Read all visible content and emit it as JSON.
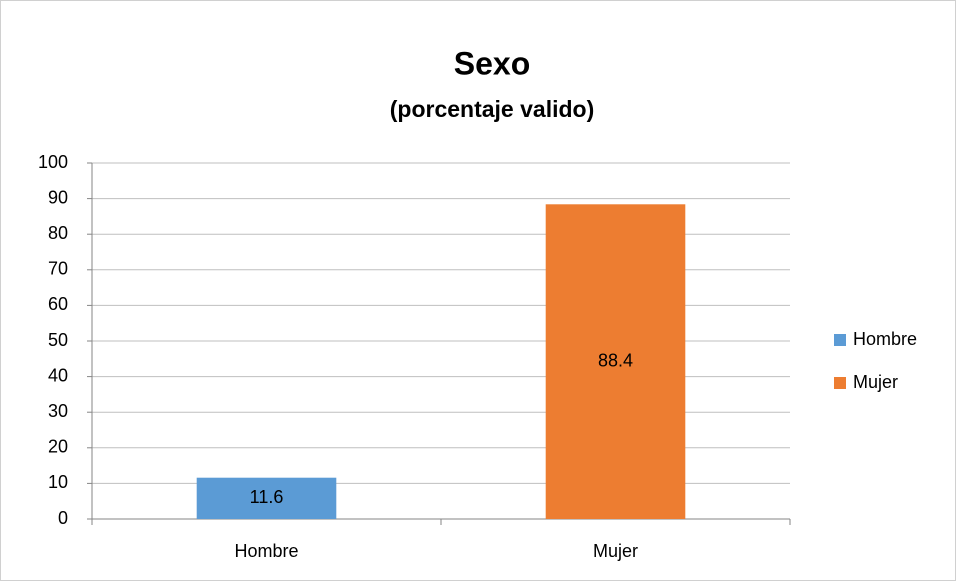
{
  "chart_data": {
    "type": "bar",
    "title": "Sexo",
    "subtitle": "(porcentaje valido)",
    "categories": [
      "Hombre",
      "Mujer"
    ],
    "values": [
      11.6,
      88.4
    ],
    "colors": [
      "#5b9bd5",
      "#ed7d31"
    ],
    "ylim": [
      0,
      100
    ],
    "yticks": [
      0,
      10,
      20,
      30,
      40,
      50,
      60,
      70,
      80,
      90,
      100
    ],
    "grid": true,
    "legend": "right",
    "data_labels": true
  }
}
